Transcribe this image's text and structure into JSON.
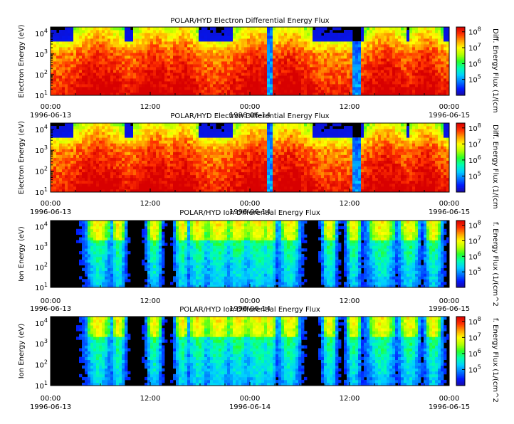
{
  "colors": {
    "background": "#ffffff",
    "plot_background": "#000000",
    "axis": "#000000"
  },
  "colormap": [
    "#1a0aa0",
    "#0018ff",
    "#0078ff",
    "#00d0ff",
    "#00ffb0",
    "#28ff28",
    "#b4ff00",
    "#ffff00",
    "#ffa000",
    "#ff3000",
    "#d80000"
  ],
  "chart_data": [
    {
      "type": "heatmap",
      "title": "POLAR/HYD  Electron Differential Energy Flux",
      "ylabel": "Electron Energy (eV)",
      "colorbar_label": "Diff. Energy Flux (1/(cm",
      "species": "electron",
      "yscale": "log",
      "ylim": [
        10,
        20000
      ],
      "y_ticks": [
        {
          "base": "10",
          "exp": "1"
        },
        {
          "base": "10",
          "exp": "2"
        },
        {
          "base": "10",
          "exp": "3"
        },
        {
          "base": "10",
          "exp": "4"
        }
      ],
      "colorbar_scale": "log",
      "colorbar_range": [
        10000,
        200000000
      ],
      "colorbar_ticks": [
        {
          "base": "10",
          "exp": "5"
        },
        {
          "base": "10",
          "exp": "6"
        },
        {
          "base": "10",
          "exp": "7"
        },
        {
          "base": "10",
          "exp": "8"
        }
      ],
      "x_ticks": [
        {
          "time": "00:00",
          "date": "1996-06-13"
        },
        {
          "time": "12:00",
          "date": ""
        },
        {
          "time": "00:00",
          "date": "1996-06-14"
        },
        {
          "time": "12:00",
          "date": ""
        },
        {
          "time": "00:00",
          "date": "1996-06-15"
        }
      ],
      "x_range": [
        "1996-06-13 00:00",
        "1996-06-15 00:00"
      ],
      "seed": 11
    },
    {
      "type": "heatmap",
      "title": "POLAR/HYD  Electron Differential Energy Flux",
      "ylabel": "Electron Energy (eV)",
      "colorbar_label": "Diff. Energy Flux (1/(cm",
      "species": "electron",
      "yscale": "log",
      "ylim": [
        10,
        20000
      ],
      "y_ticks": [
        {
          "base": "10",
          "exp": "1"
        },
        {
          "base": "10",
          "exp": "2"
        },
        {
          "base": "10",
          "exp": "3"
        },
        {
          "base": "10",
          "exp": "4"
        }
      ],
      "colorbar_scale": "log",
      "colorbar_range": [
        10000,
        200000000
      ],
      "colorbar_ticks": [
        {
          "base": "10",
          "exp": "5"
        },
        {
          "base": "10",
          "exp": "6"
        },
        {
          "base": "10",
          "exp": "7"
        },
        {
          "base": "10",
          "exp": "8"
        }
      ],
      "x_ticks": [
        {
          "time": "00:00",
          "date": "1996-06-13"
        },
        {
          "time": "12:00",
          "date": ""
        },
        {
          "time": "00:00",
          "date": "1996-06-14"
        },
        {
          "time": "12:00",
          "date": ""
        },
        {
          "time": "00:00",
          "date": "1996-06-15"
        }
      ],
      "x_range": [
        "1996-06-13 00:00",
        "1996-06-15 00:00"
      ],
      "seed": 11
    },
    {
      "type": "heatmap",
      "title": "POLAR/HYD  Ion Differential Energy Flux",
      "ylabel": "Ion Energy (eV)",
      "colorbar_label": "f. Energy Flux (1/(cm^2",
      "species": "ion",
      "yscale": "log",
      "ylim": [
        10,
        20000
      ],
      "y_ticks": [
        {
          "base": "10",
          "exp": "1"
        },
        {
          "base": "10",
          "exp": "2"
        },
        {
          "base": "10",
          "exp": "3"
        },
        {
          "base": "10",
          "exp": "4"
        }
      ],
      "colorbar_scale": "log",
      "colorbar_range": [
        10000,
        200000000
      ],
      "colorbar_ticks": [
        {
          "base": "10",
          "exp": "5"
        },
        {
          "base": "10",
          "exp": "6"
        },
        {
          "base": "10",
          "exp": "7"
        },
        {
          "base": "10",
          "exp": "8"
        }
      ],
      "x_ticks": [
        {
          "time": "00:00",
          "date": "1996-06-13"
        },
        {
          "time": "12:00",
          "date": ""
        },
        {
          "time": "00:00",
          "date": "1996-06-14"
        },
        {
          "time": "12:00",
          "date": ""
        },
        {
          "time": "00:00",
          "date": "1996-06-15"
        }
      ],
      "x_range": [
        "1996-06-13 00:00",
        "1996-06-15 00:00"
      ],
      "seed": 29
    },
    {
      "type": "heatmap",
      "title": "POLAR/HYD  Ion Differential Energy Flux",
      "ylabel": "Ion Energy (eV)",
      "colorbar_label": "f. Energy Flux (1/(cm^2",
      "species": "ion",
      "yscale": "log",
      "ylim": [
        10,
        20000
      ],
      "y_ticks": [
        {
          "base": "10",
          "exp": "1"
        },
        {
          "base": "10",
          "exp": "2"
        },
        {
          "base": "10",
          "exp": "3"
        },
        {
          "base": "10",
          "exp": "4"
        }
      ],
      "colorbar_scale": "log",
      "colorbar_range": [
        10000,
        200000000
      ],
      "colorbar_ticks": [
        {
          "base": "10",
          "exp": "5"
        },
        {
          "base": "10",
          "exp": "6"
        },
        {
          "base": "10",
          "exp": "7"
        },
        {
          "base": "10",
          "exp": "8"
        }
      ],
      "x_ticks": [
        {
          "time": "00:00",
          "date": "1996-06-13"
        },
        {
          "time": "12:00",
          "date": ""
        },
        {
          "time": "00:00",
          "date": "1996-06-14"
        },
        {
          "time": "12:00",
          "date": ""
        },
        {
          "time": "00:00",
          "date": "1996-06-15"
        }
      ],
      "x_range": [
        "1996-06-13 00:00",
        "1996-06-15 00:00"
      ],
      "seed": 29
    }
  ]
}
